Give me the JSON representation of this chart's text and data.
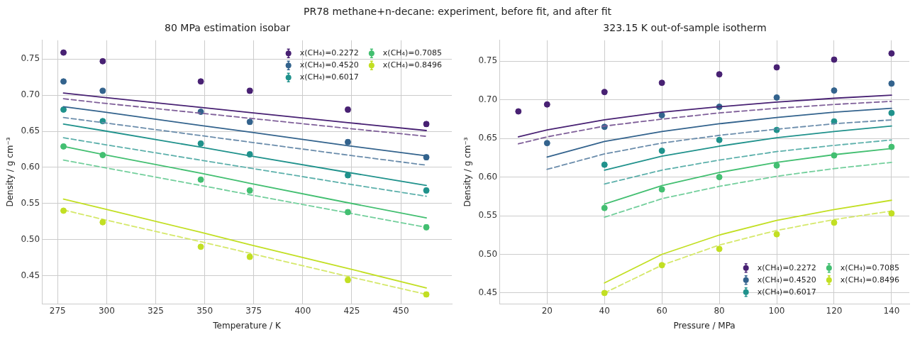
{
  "chart_data": [
    {
      "type": "scatter",
      "title": "80 MPa estimation isobar",
      "xlabel": "Temperature / K",
      "ylabel": "Density / g cm⁻³",
      "annotations": [
        "PR78 methane+n-decane: experiment, before fit, and after fit"
      ],
      "xlim": [
        267,
        476
      ],
      "xticks": [
        275,
        300,
        325,
        350,
        375,
        400,
        425,
        450
      ],
      "ylim": [
        0.411,
        0.776
      ],
      "yticks": [
        0.45,
        {
          "value": 0.5,
          "label": "0.50"
        },
        0.55,
        {
          "value": 0.6,
          "label": "0.60"
        },
        0.65,
        {
          "value": 0.7,
          "label": "0.70"
        },
        0.75
      ],
      "grid": true,
      "legend": "top right",
      "x": [
        278,
        298,
        348,
        373,
        423,
        463
      ],
      "series": [
        {
          "name": "x(CH₄)=0.2272",
          "marker": "circle",
          "color": "#482173",
          "values": [
            0.759,
            0.747,
            0.719,
            0.706,
            0.68,
            0.66
          ],
          "errors": [
            null,
            null,
            null,
            0.003,
            0.003,
            0.003
          ]
        },
        {
          "type": "line",
          "marker": "none",
          "line_style": "solid",
          "color": "#482173",
          "values": [
            0.703,
            0.697,
            0.683,
            0.676,
            0.662,
            0.651
          ]
        },
        {
          "type": "line",
          "marker": "none",
          "line_style": "dashed",
          "color": "#7f5f99",
          "values": [
            0.695,
            0.689,
            0.675,
            0.668,
            0.654,
            0.643
          ]
        },
        {
          "name": "x(CH₄)=0.4520",
          "marker": "circle",
          "color": "#33638d",
          "values": [
            0.719,
            0.706,
            0.677,
            0.663,
            0.635,
            0.614
          ],
          "errors": [
            null,
            null,
            null,
            0.003,
            0.003,
            0.003
          ]
        },
        {
          "type": "line",
          "marker": "none",
          "line_style": "solid",
          "color": "#33638d",
          "values": [
            0.684,
            0.677,
            0.658,
            0.649,
            0.63,
            0.616
          ]
        },
        {
          "type": "line",
          "marker": "none",
          "line_style": "dashed",
          "color": "#6a8cab",
          "values": [
            0.669,
            0.662,
            0.644,
            0.635,
            0.617,
            0.603
          ]
        },
        {
          "name": "x(CH₄)=0.6017",
          "marker": "circle",
          "color": "#20928c",
          "values": [
            0.68,
            0.664,
            0.633,
            0.618,
            0.589,
            0.568
          ],
          "errors": [
            null,
            null,
            null,
            0.003,
            0.003,
            0.003
          ]
        },
        {
          "type": "line",
          "marker": "none",
          "line_style": "solid",
          "color": "#20928c",
          "values": [
            0.66,
            0.651,
            0.628,
            0.616,
            0.593,
            0.575
          ]
        },
        {
          "type": "line",
          "marker": "none",
          "line_style": "dashed",
          "color": "#5cb0ab",
          "values": [
            0.641,
            0.632,
            0.61,
            0.599,
            0.577,
            0.56
          ]
        },
        {
          "name": "x(CH₄)=0.7085",
          "marker": "circle",
          "color": "#43bf71",
          "values": [
            0.629,
            0.617,
            0.583,
            0.568,
            0.538,
            0.517
          ],
          "errors": [
            null,
            null,
            null,
            0.003,
            0.003,
            0.003
          ]
        },
        {
          "type": "line",
          "marker": "none",
          "line_style": "solid",
          "color": "#43bf71",
          "values": [
            0.629,
            0.618,
            0.592,
            0.578,
            0.551,
            0.53
          ]
        },
        {
          "type": "line",
          "marker": "none",
          "line_style": "dashed",
          "color": "#73cf9c",
          "values": [
            0.61,
            0.6,
            0.575,
            0.562,
            0.537,
            0.517
          ]
        },
        {
          "name": "x(CH₄)=0.8496",
          "marker": "circle",
          "color": "#c2df23",
          "values": [
            0.54,
            0.524,
            0.49,
            0.476,
            0.444,
            0.424
          ],
          "errors": [
            null,
            null,
            null,
            0.003,
            0.003,
            0.003
          ]
        },
        {
          "type": "line",
          "marker": "none",
          "line_style": "solid",
          "color": "#c2df23",
          "values": [
            0.556,
            0.543,
            0.51,
            0.493,
            0.46,
            0.433
          ]
        },
        {
          "type": "line",
          "marker": "none",
          "line_style": "dashed",
          "color": "#d5e86a",
          "values": [
            0.541,
            0.528,
            0.497,
            0.481,
            0.449,
            0.424
          ]
        }
      ]
    },
    {
      "type": "scatter",
      "title": "323.15 K out-of-sample isotherm",
      "xlabel": "Pressure / MPa",
      "ylabel": "Density / g cm⁻³",
      "xlim": [
        3.4,
        146.2
      ],
      "xticks": [
        20,
        40,
        60,
        80,
        100,
        120,
        140
      ],
      "ylim": [
        0.436,
        0.777
      ],
      "yticks": [
        0.45,
        {
          "value": 0.5,
          "label": "0.50"
        },
        0.55,
        {
          "value": 0.6,
          "label": "0.60"
        },
        0.65,
        {
          "value": 0.7,
          "label": "0.70"
        },
        0.75
      ],
      "grid": true,
      "legend": "bottom right",
      "series": [
        {
          "name": "x(CH₄)=0.2272",
          "marker": "circle",
          "color": "#482173",
          "x": [
            10,
            20,
            40,
            60,
            80,
            100,
            120,
            140
          ],
          "values": [
            0.685,
            0.694,
            0.71,
            0.722,
            0.733,
            0.742,
            0.752,
            0.76
          ]
        },
        {
          "type": "line",
          "marker": "none",
          "line_style": "solid",
          "color": "#482173",
          "x": [
            10,
            20,
            40,
            60,
            80,
            100,
            120,
            140
          ],
          "values": [
            0.652,
            0.661,
            0.674,
            0.684,
            0.691,
            0.697,
            0.702,
            0.706
          ]
        },
        {
          "type": "line",
          "marker": "none",
          "line_style": "dashed",
          "color": "#7f5f99",
          "x": [
            10,
            20,
            40,
            60,
            80,
            100,
            120,
            140
          ],
          "values": [
            0.643,
            0.652,
            0.666,
            0.675,
            0.683,
            0.689,
            0.694,
            0.698
          ]
        },
        {
          "name": "x(CH₄)=0.4520",
          "marker": "circle",
          "color": "#33638d",
          "x": [
            20,
            40,
            60,
            80,
            100,
            120,
            140
          ],
          "values": [
            0.644,
            0.665,
            0.68,
            0.691,
            0.703,
            0.712,
            0.721
          ]
        },
        {
          "type": "line",
          "marker": "none",
          "line_style": "solid",
          "color": "#33638d",
          "x": [
            20,
            40,
            60,
            80,
            100,
            120,
            140
          ],
          "values": [
            0.626,
            0.646,
            0.659,
            0.669,
            0.677,
            0.684,
            0.689
          ]
        },
        {
          "type": "line",
          "marker": "none",
          "line_style": "dashed",
          "color": "#6a8cab",
          "x": [
            20,
            40,
            60,
            80,
            100,
            120,
            140
          ],
          "values": [
            0.61,
            0.63,
            0.644,
            0.654,
            0.662,
            0.669,
            0.674
          ]
        },
        {
          "name": "x(CH₄)=0.6017",
          "marker": "circle",
          "color": "#20928c",
          "x": [
            40,
            60,
            80,
            100,
            120,
            140
          ],
          "values": [
            0.616,
            0.634,
            0.648,
            0.661,
            0.672,
            0.683
          ]
        },
        {
          "type": "line",
          "marker": "none",
          "line_style": "solid",
          "color": "#20928c",
          "x": [
            40,
            60,
            80,
            100,
            120,
            140
          ],
          "values": [
            0.609,
            0.627,
            0.64,
            0.651,
            0.659,
            0.666
          ]
        },
        {
          "type": "line",
          "marker": "none",
          "line_style": "dashed",
          "color": "#5cb0ab",
          "x": [
            40,
            60,
            80,
            100,
            120,
            140
          ],
          "values": [
            0.591,
            0.609,
            0.622,
            0.633,
            0.641,
            0.648
          ]
        },
        {
          "name": "x(CH₄)=0.7085",
          "marker": "circle",
          "color": "#43bf71",
          "x": [
            40,
            60,
            80,
            100,
            120,
            140
          ],
          "values": [
            0.56,
            0.584,
            0.6,
            0.615,
            0.628,
            0.639
          ]
        },
        {
          "type": "line",
          "marker": "none",
          "line_style": "solid",
          "color": "#43bf71",
          "x": [
            40,
            60,
            80,
            100,
            120,
            140
          ],
          "values": [
            0.565,
            0.589,
            0.606,
            0.619,
            0.629,
            0.637
          ]
        },
        {
          "type": "line",
          "marker": "none",
          "line_style": "dashed",
          "color": "#73cf9c",
          "x": [
            40,
            60,
            80,
            100,
            120,
            140
          ],
          "values": [
            0.548,
            0.572,
            0.588,
            0.601,
            0.611,
            0.619
          ]
        },
        {
          "name": "x(CH₄)=0.8496",
          "marker": "circle",
          "color": "#c2df23",
          "x": [
            40,
            60,
            80,
            100,
            120,
            140
          ],
          "values": [
            0.45,
            0.486,
            0.507,
            0.526,
            0.541,
            0.553
          ]
        },
        {
          "type": "line",
          "marker": "none",
          "line_style": "solid",
          "color": "#c2df23",
          "x": [
            40,
            60,
            80,
            100,
            120,
            140
          ],
          "values": [
            0.463,
            0.5,
            0.525,
            0.544,
            0.558,
            0.57
          ]
        },
        {
          "type": "line",
          "marker": "none",
          "line_style": "dashed",
          "color": "#d5e86a",
          "x": [
            40,
            60,
            80,
            100,
            120,
            140
          ],
          "values": [
            0.45,
            0.486,
            0.512,
            0.531,
            0.545,
            0.556
          ]
        }
      ]
    }
  ]
}
